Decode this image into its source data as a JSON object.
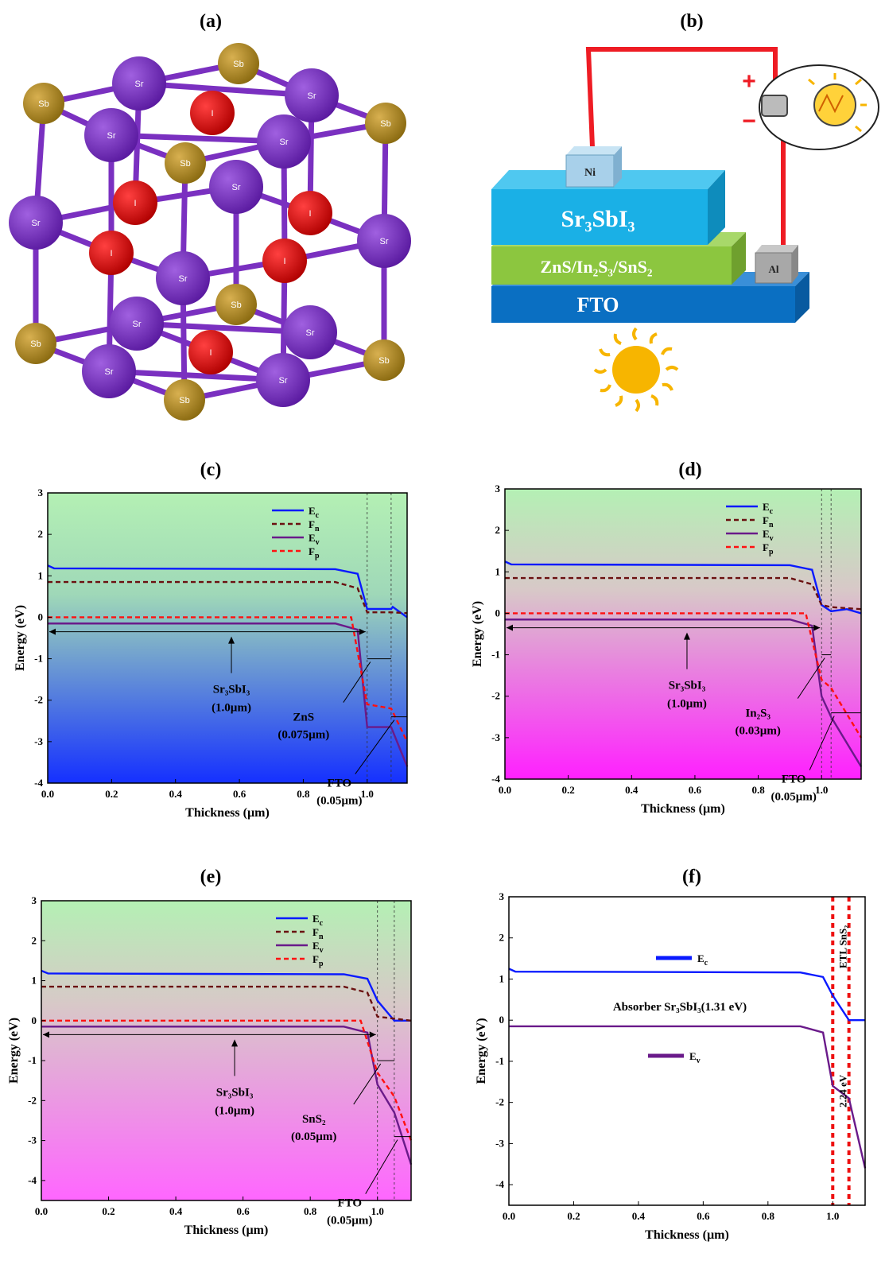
{
  "panels": {
    "a": "(a)",
    "b": "(b)",
    "c": "(c)",
    "d": "(d)",
    "e": "(e)",
    "f": "(f)"
  },
  "crystal": {
    "sr": "Sr",
    "sb": "Sb",
    "i": "I"
  },
  "device": {
    "absorber": "Sr₃SbI₃",
    "etl": "ZnS/In₂S₃/SnS₂",
    "fto": "FTO",
    "ni": "Ni",
    "al": "Al",
    "plus": "+",
    "minus": "−",
    "colors": {
      "absorber": "#1ab0e6",
      "etl": "#8cc63f",
      "fto": "#0a6fc2",
      "wire": "#ee1c24",
      "sun": "#f7b500"
    }
  },
  "chart_data": [
    {
      "id": "c",
      "type": "line",
      "xlabel": "Thickness (µm)",
      "ylabel": "Energy (eV)",
      "xlim": [
        0,
        1.125
      ],
      "ylim": [
        -4,
        3
      ],
      "xticks": [
        "0.0",
        "0.2",
        "0.4",
        "0.6",
        "0.8",
        "1.0"
      ],
      "yticks": [
        "3",
        "2",
        "1",
        "0",
        "-1",
        "-2",
        "-3",
        "-4"
      ],
      "interfaces": [
        1.0,
        1.075,
        1.125
      ],
      "legend": [
        "Ec",
        "Fn",
        "Ev",
        "Fp"
      ],
      "annotations": {
        "absorber": "Sr₃SbI₃",
        "absorber_thk": "(1.0µm)",
        "etl": "ZnS",
        "etl_thk": "(0.075µm)",
        "fto": "FTO",
        "fto_thk": "(0.05µm)"
      },
      "series": [
        {
          "name": "Ec",
          "x": [
            0,
            0.02,
            0.9,
            0.97,
            1.0,
            1.075,
            1.08,
            1.125
          ],
          "y": [
            1.25,
            1.18,
            1.16,
            1.05,
            0.2,
            0.2,
            0.25,
            0.0
          ]
        },
        {
          "name": "Fn",
          "x": [
            0,
            0.9,
            0.97,
            1.0,
            1.075,
            1.125
          ],
          "y": [
            0.85,
            0.85,
            0.7,
            0.12,
            0.12,
            0.1
          ]
        },
        {
          "name": "Ev",
          "x": [
            0,
            0.9,
            0.97,
            1.0,
            1.075,
            1.125
          ],
          "y": [
            -0.15,
            -0.15,
            -0.3,
            -2.65,
            -2.65,
            -3.6
          ]
        },
        {
          "name": "Fp",
          "x": [
            0,
            0.95,
            1.0,
            1.075,
            1.125
          ],
          "y": [
            0,
            0,
            -2.1,
            -2.2,
            -3.0
          ]
        }
      ]
    },
    {
      "id": "d",
      "type": "line",
      "xlabel": "Thickness (µm)",
      "ylabel": "Energy (eV)",
      "xlim": [
        0,
        1.125
      ],
      "ylim": [
        -4,
        3
      ],
      "xticks": [
        "0.0",
        "0.2",
        "0.4",
        "0.6",
        "0.8",
        "1.0"
      ],
      "yticks": [
        "3",
        "2",
        "1",
        "0",
        "-1",
        "-2",
        "-3",
        "-4"
      ],
      "interfaces": [
        1.0,
        1.03,
        1.125
      ],
      "legend": [
        "Ec",
        "Fn",
        "Ev",
        "Fp"
      ],
      "annotations": {
        "absorber": "Sr₃SbI₃",
        "absorber_thk": "(1.0µm)",
        "etl": "In₂S₃",
        "etl_thk": "(0.03µm)",
        "fto": "FTO",
        "fto_thk": "(0.05µm)"
      },
      "series": [
        {
          "name": "Ec",
          "x": [
            0,
            0.02,
            0.9,
            0.97,
            1.0,
            1.03,
            1.08,
            1.125
          ],
          "y": [
            1.25,
            1.18,
            1.16,
            1.05,
            0.2,
            0.05,
            0.1,
            0.0
          ]
        },
        {
          "name": "Fn",
          "x": [
            0,
            0.9,
            0.97,
            1.0,
            1.03,
            1.125
          ],
          "y": [
            0.85,
            0.85,
            0.7,
            0.2,
            0.15,
            0.1
          ]
        },
        {
          "name": "Ev",
          "x": [
            0,
            0.9,
            0.97,
            1.0,
            1.03,
            1.125
          ],
          "y": [
            -0.15,
            -0.15,
            -0.3,
            -2.0,
            -2.5,
            -3.7
          ]
        },
        {
          "name": "Fp",
          "x": [
            0,
            0.95,
            1.0,
            1.03,
            1.125
          ],
          "y": [
            0,
            0,
            -1.6,
            -1.8,
            -3.0
          ]
        }
      ]
    },
    {
      "id": "e",
      "type": "line",
      "xlabel": "Thickness (µm)",
      "ylabel": "Energy (eV)",
      "xlim": [
        0,
        1.1
      ],
      "ylim": [
        -4.5,
        3
      ],
      "xticks": [
        "0.0",
        "0.2",
        "0.4",
        "0.6",
        "0.8",
        "1.0"
      ],
      "yticks": [
        "3",
        "2",
        "1",
        "0",
        "-1",
        "-2",
        "-3",
        "-4"
      ],
      "interfaces": [
        1.0,
        1.05,
        1.1
      ],
      "legend": [
        "Ec",
        "Fn",
        "Ev",
        "Fp"
      ],
      "annotations": {
        "absorber": "Sr₃SbI₃",
        "absorber_thk": "(1.0µm)",
        "etl": "SnS₂",
        "etl_thk": "(0.05µm)",
        "fto": "FTO",
        "fto_thk": "(0.05µm)"
      },
      "series": [
        {
          "name": "Ec",
          "x": [
            0,
            0.02,
            0.9,
            0.97,
            1.0,
            1.05,
            1.1
          ],
          "y": [
            1.25,
            1.18,
            1.16,
            1.05,
            0.5,
            0.0,
            0.0
          ]
        },
        {
          "name": "Fn",
          "x": [
            0,
            0.9,
            0.97,
            1.0,
            1.05,
            1.1
          ],
          "y": [
            0.85,
            0.85,
            0.7,
            0.1,
            0.05,
            0.0
          ]
        },
        {
          "name": "Ev",
          "x": [
            0,
            0.9,
            0.97,
            1.0,
            1.05,
            1.1
          ],
          "y": [
            -0.15,
            -0.15,
            -0.3,
            -1.6,
            -2.3,
            -3.6
          ]
        },
        {
          "name": "Fp",
          "x": [
            0,
            0.95,
            1.0,
            1.05,
            1.1
          ],
          "y": [
            0,
            0,
            -1.3,
            -1.9,
            -3.0
          ]
        }
      ]
    },
    {
      "id": "f",
      "type": "line",
      "xlabel": "Thickness (µm)",
      "ylabel": "Energy (eV)",
      "xlim": [
        0,
        1.1
      ],
      "ylim": [
        -4.5,
        3
      ],
      "xticks": [
        "0.0",
        "0.2",
        "0.4",
        "0.6",
        "0.8",
        "1.0"
      ],
      "yticks": [
        "3",
        "2",
        "1",
        "0",
        "-1",
        "-2",
        "-3",
        "-4"
      ],
      "interfaces": [
        1.0,
        1.05
      ],
      "legend": [
        "Ec",
        "Ev"
      ],
      "annotations": {
        "absorber_label": "Absorber Sr₃SbI₃(1.31 eV)",
        "etl_label": "ETL SnS₂",
        "gap": "2.24 eV"
      },
      "series": [
        {
          "name": "Ec",
          "x": [
            0,
            0.02,
            0.9,
            0.97,
            1.0,
            1.05,
            1.1
          ],
          "y": [
            1.25,
            1.18,
            1.16,
            1.05,
            0.6,
            0.0,
            0.0
          ]
        },
        {
          "name": "Ev",
          "x": [
            0,
            0.02,
            0.9,
            0.97,
            1.0,
            1.05,
            1.1
          ],
          "y": [
            -0.15,
            -0.15,
            -0.15,
            -0.3,
            -1.6,
            -1.9,
            -3.6
          ]
        }
      ]
    }
  ]
}
